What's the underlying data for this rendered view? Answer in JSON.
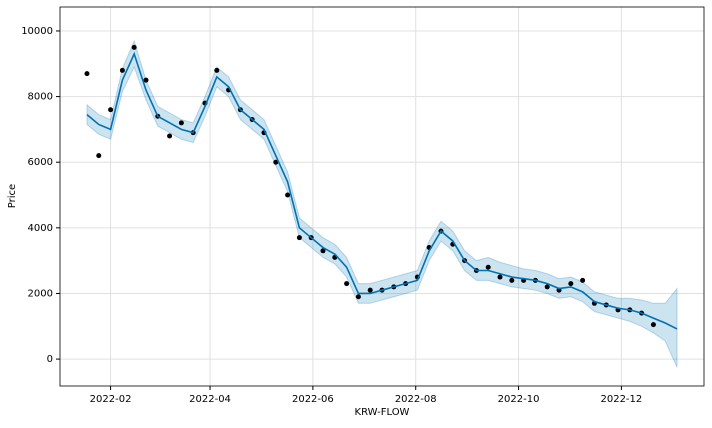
{
  "chart_data": {
    "type": "forecast",
    "xlabel": "KRW-FLOW",
    "ylabel": "Price",
    "x": [
      "2022-01-18",
      "2022-01-25",
      "2022-02-01",
      "2022-02-08",
      "2022-02-15",
      "2022-02-22",
      "2022-03-01",
      "2022-03-08",
      "2022-03-15",
      "2022-03-22",
      "2022-03-29",
      "2022-04-05",
      "2022-04-12",
      "2022-04-19",
      "2022-04-26",
      "2022-05-03",
      "2022-05-10",
      "2022-05-17",
      "2022-05-24",
      "2022-05-31",
      "2022-06-07",
      "2022-06-14",
      "2022-06-21",
      "2022-06-28",
      "2022-07-05",
      "2022-07-12",
      "2022-07-19",
      "2022-07-26",
      "2022-08-02",
      "2022-08-09",
      "2022-08-16",
      "2022-08-23",
      "2022-08-30",
      "2022-09-06",
      "2022-09-13",
      "2022-09-20",
      "2022-09-27",
      "2022-10-04",
      "2022-10-11",
      "2022-10-18",
      "2022-10-25",
      "2022-11-01",
      "2022-11-08",
      "2022-11-15",
      "2022-11-22",
      "2022-11-29",
      "2022-12-06",
      "2022-12-13",
      "2022-12-20",
      "2022-12-27",
      "2023-01-03"
    ],
    "observed": [
      8700,
      6200,
      7600,
      8800,
      9500,
      8500,
      7400,
      6800,
      7200,
      6900,
      7800,
      8800,
      8200,
      7600,
      7300,
      6900,
      6000,
      5000,
      3700,
      3700,
      3300,
      3100,
      2300,
      1900,
      2100,
      2100,
      2200,
      2300,
      2500,
      3400,
      3900,
      3500,
      3000,
      2700,
      2800,
      2500,
      2400,
      2400,
      2400,
      2200,
      2100,
      2300,
      2400,
      1700,
      1650,
      1500,
      1500,
      1400,
      1050,
      null,
      null
    ],
    "forecast": [
      7450,
      7150,
      7000,
      8500,
      9300,
      8200,
      7400,
      7200,
      7000,
      6900,
      7700,
      8600,
      8300,
      7600,
      7300,
      7000,
      6200,
      5400,
      4000,
      3700,
      3400,
      3200,
      2800,
      2000,
      2000,
      2100,
      2200,
      2300,
      2400,
      3300,
      3900,
      3600,
      3000,
      2700,
      2700,
      2600,
      2500,
      2450,
      2400,
      2300,
      2150,
      2200,
      2050,
      1750,
      1650,
      1550,
      1500,
      1400,
      1250,
      1100,
      920
    ],
    "forecast_lower": [
      7150,
      6850,
      6700,
      8150,
      8900,
      7900,
      7100,
      6900,
      6700,
      6600,
      7400,
      8300,
      8000,
      7300,
      7000,
      6700,
      5900,
      5100,
      3700,
      3400,
      3100,
      2900,
      2500,
      1700,
      1700,
      1800,
      1900,
      2000,
      2100,
      3000,
      3600,
      3300,
      2700,
      2400,
      2400,
      2300,
      2200,
      2150,
      2100,
      2000,
      1850,
      1900,
      1750,
      1450,
      1350,
      1250,
      1150,
      1000,
      800,
      550,
      -250
    ],
    "forecast_upper": [
      7750,
      7450,
      7300,
      8850,
      9700,
      8500,
      7700,
      7500,
      7300,
      7200,
      8000,
      8900,
      8600,
      7900,
      7600,
      7300,
      6500,
      5700,
      4300,
      4000,
      3700,
      3500,
      3100,
      2300,
      2300,
      2400,
      2500,
      2600,
      2700,
      3600,
      4200,
      3900,
      3300,
      3000,
      3100,
      2950,
      2850,
      2750,
      2700,
      2600,
      2450,
      2500,
      2350,
      2050,
      1950,
      1850,
      1850,
      1800,
      1700,
      1700,
      2150
    ],
    "observed_color": "#000000",
    "forecast_color": "#0072b2",
    "band_color": "#0072b2",
    "xlim": [
      "2022-01-02",
      "2023-01-19"
    ],
    "xticks": [
      {
        "value": "2022-02-01",
        "label": "2022-02"
      },
      {
        "value": "2022-04-01",
        "label": "2022-04"
      },
      {
        "value": "2022-06-01",
        "label": "2022-06"
      },
      {
        "value": "2022-08-01",
        "label": "2022-08"
      },
      {
        "value": "2022-10-01",
        "label": "2022-10"
      },
      {
        "value": "2022-12-01",
        "label": "2022-12"
      }
    ],
    "ylim": [
      -820,
      10730
    ],
    "yticks": [
      0,
      2000,
      4000,
      6000,
      8000,
      10000
    ],
    "grid": true
  }
}
